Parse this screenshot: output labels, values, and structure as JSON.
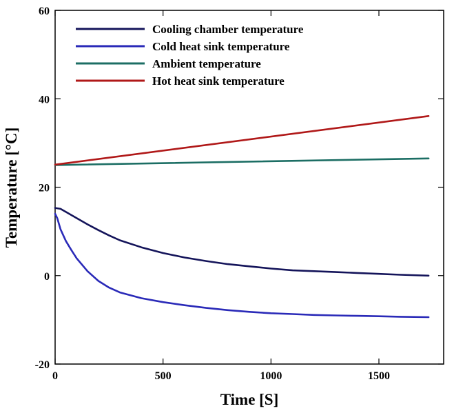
{
  "chart_data": {
    "type": "line",
    "xlabel": "Time [S]",
    "ylabel": "Temperature [°C]",
    "xlim": [
      0,
      1800
    ],
    "ylim": [
      -20,
      60
    ],
    "x_ticks": [
      0,
      500,
      1000,
      1500
    ],
    "y_ticks": [
      -20,
      0,
      20,
      40,
      60
    ],
    "grid": false,
    "legend_position": "top-left",
    "series": [
      {
        "name": "Cooling chamber temperature",
        "color": "#14145a",
        "x": [
          0,
          25,
          50,
          100,
          150,
          200,
          250,
          300,
          400,
          500,
          600,
          700,
          800,
          900,
          1000,
          1100,
          1200,
          1300,
          1400,
          1500,
          1600,
          1730
        ],
        "y": [
          15.3,
          15.1,
          14.4,
          13.0,
          11.6,
          10.3,
          9.1,
          8.0,
          6.4,
          5.1,
          4.1,
          3.3,
          2.6,
          2.1,
          1.6,
          1.2,
          1.0,
          0.8,
          0.6,
          0.4,
          0.2,
          0.0
        ]
      },
      {
        "name": "Cold heat sink temperature",
        "color": "#2a2ab8",
        "x": [
          0,
          10,
          25,
          50,
          75,
          100,
          150,
          200,
          250,
          300,
          400,
          500,
          600,
          700,
          800,
          900,
          1000,
          1100,
          1200,
          1300,
          1400,
          1500,
          1600,
          1730
        ],
        "y": [
          14.0,
          13.0,
          10.5,
          7.8,
          5.8,
          3.9,
          1.0,
          -1.2,
          -2.7,
          -3.8,
          -5.1,
          -6.0,
          -6.7,
          -7.3,
          -7.8,
          -8.2,
          -8.5,
          -8.7,
          -8.9,
          -9.0,
          -9.1,
          -9.2,
          -9.3,
          -9.4
        ]
      },
      {
        "name": "Ambient temperature",
        "color": "#1c6e64",
        "x": [
          0,
          1730
        ],
        "y": [
          25.0,
          26.5
        ]
      },
      {
        "name": "Hot heat sink temperature",
        "color": "#b01818",
        "x": [
          0,
          1730
        ],
        "y": [
          25.1,
          36.1
        ]
      }
    ]
  }
}
